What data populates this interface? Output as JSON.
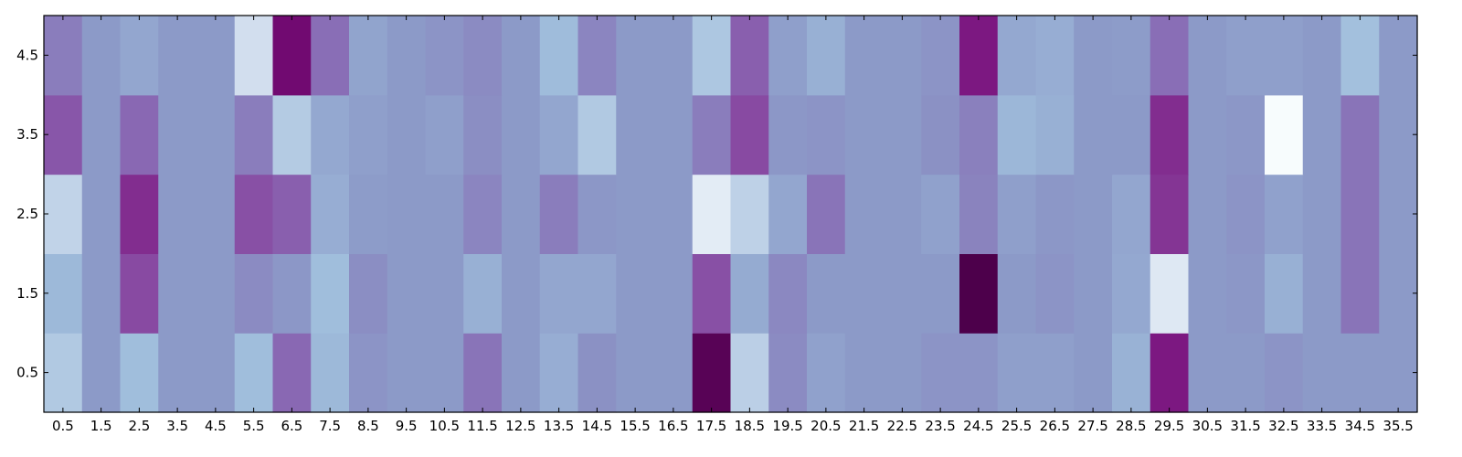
{
  "chart_data": {
    "type": "heatmap",
    "colormap": "BuPu",
    "x_categories": [
      "0.5",
      "1.5",
      "2.5",
      "3.5",
      "4.5",
      "5.5",
      "6.5",
      "7.5",
      "8.5",
      "9.5",
      "10.5",
      "11.5",
      "12.5",
      "13.5",
      "14.5",
      "15.5",
      "16.5",
      "17.5",
      "18.5",
      "19.5",
      "20.5",
      "21.5",
      "22.5",
      "23.5",
      "24.5",
      "25.5",
      "26.5",
      "27.5",
      "28.5",
      "29.5",
      "30.5",
      "31.5",
      "32.5",
      "33.5",
      "34.5",
      "35.5"
    ],
    "y_categories": [
      "0.5",
      "1.5",
      "2.5",
      "3.5",
      "4.5"
    ],
    "value_range": [
      0,
      1
    ],
    "rows": [
      [
        0.25,
        0.45,
        0.3,
        0.45,
        0.45,
        0.3,
        0.62,
        0.32,
        0.47,
        0.45,
        0.45,
        0.58,
        0.45,
        0.37,
        0.48,
        0.45,
        0.45,
        0.97,
        0.22,
        0.5,
        0.42,
        0.45,
        0.45,
        0.47,
        0.47,
        0.43,
        0.43,
        0.45,
        0.35,
        0.85,
        0.45,
        0.45,
        0.47,
        0.45,
        0.45,
        0.45
      ],
      [
        0.32,
        0.45,
        0.72,
        0.45,
        0.45,
        0.5,
        0.46,
        0.3,
        0.49,
        0.45,
        0.45,
        0.36,
        0.45,
        0.4,
        0.4,
        0.45,
        0.45,
        0.7,
        0.38,
        0.51,
        0.45,
        0.45,
        0.45,
        0.45,
        1.0,
        0.45,
        0.47,
        0.45,
        0.39,
        0.1,
        0.45,
        0.46,
        0.36,
        0.45,
        0.58,
        0.45
      ],
      [
        0.2,
        0.45,
        0.8,
        0.45,
        0.45,
        0.7,
        0.65,
        0.37,
        0.44,
        0.45,
        0.45,
        0.52,
        0.45,
        0.55,
        0.46,
        0.45,
        0.45,
        0.08,
        0.21,
        0.4,
        0.58,
        0.45,
        0.45,
        0.42,
        0.53,
        0.43,
        0.46,
        0.45,
        0.4,
        0.78,
        0.45,
        0.47,
        0.42,
        0.45,
        0.58,
        0.45
      ],
      [
        0.68,
        0.45,
        0.62,
        0.45,
        0.45,
        0.55,
        0.24,
        0.39,
        0.43,
        0.45,
        0.43,
        0.49,
        0.45,
        0.4,
        0.25,
        0.45,
        0.45,
        0.55,
        0.72,
        0.46,
        0.47,
        0.45,
        0.45,
        0.48,
        0.54,
        0.33,
        0.36,
        0.45,
        0.45,
        0.8,
        0.45,
        0.46,
        0.0,
        0.45,
        0.58,
        0.45
      ],
      [
        0.55,
        0.45,
        0.4,
        0.45,
        0.45,
        0.15,
        0.9,
        0.6,
        0.41,
        0.45,
        0.47,
        0.5,
        0.45,
        0.31,
        0.52,
        0.45,
        0.45,
        0.26,
        0.65,
        0.43,
        0.36,
        0.45,
        0.45,
        0.47,
        0.85,
        0.39,
        0.37,
        0.45,
        0.44,
        0.6,
        0.45,
        0.43,
        0.43,
        0.45,
        0.29,
        0.45
      ]
    ],
    "grid": false,
    "legend": "none"
  }
}
